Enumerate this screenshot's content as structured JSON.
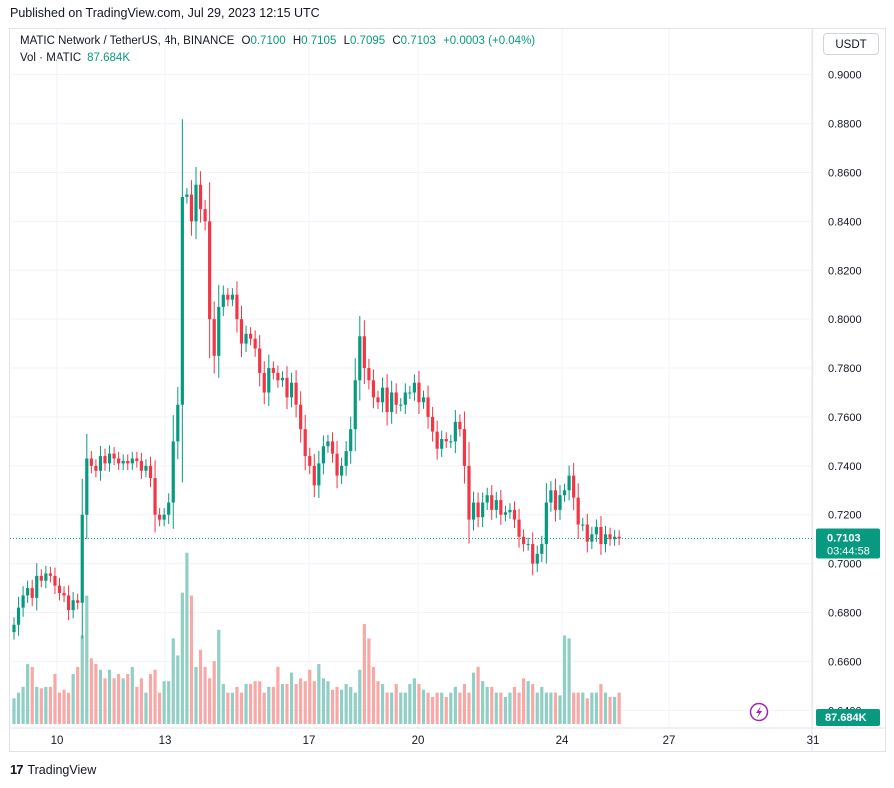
{
  "header": {
    "published": "Published on TradingView.com, Jul 29, 2023 12:15 UTC"
  },
  "legend": {
    "symbol": "MATIC Network / TetherUS, 4h, BINANCE",
    "o_label": "O",
    "o": "0.7100",
    "h_label": "H",
    "h": "0.7105",
    "l_label": "L",
    "l": "0.7095",
    "c_label": "C",
    "c": "0.7103",
    "change": "+0.0003 (+0.04%)",
    "vol_label": "Vol · MATIC",
    "vol": "87.684K"
  },
  "currency_button": "USDT",
  "price_tag": {
    "price": "0.7103",
    "countdown": "03:44:58"
  },
  "volume_tag": "87.684K",
  "footer": {
    "brand": "TradingView"
  },
  "colors": {
    "up": "#089981",
    "down": "#f23645",
    "up_vol": "#91cfc6",
    "down_vol": "#f7a9a7",
    "tag": "#089981",
    "last_line": "#089981"
  },
  "chart_data": {
    "type": "candlestick",
    "title": "MATIC Network / TetherUS, 4h, BINANCE",
    "y_ticks": [
      "0.9000",
      "0.8800",
      "0.8600",
      "0.8400",
      "0.8200",
      "0.8000",
      "0.7800",
      "0.7600",
      "0.7400",
      "0.7200",
      "0.7000",
      "0.6800",
      "0.6600",
      "0.6400"
    ],
    "ylim": [
      0.634,
      0.906
    ],
    "x_ticks": [
      "10",
      "13",
      "17",
      "20",
      "24",
      "27",
      "31"
    ],
    "last_price": 0.7103,
    "close": [
      0.675,
      0.682,
      0.687,
      0.69,
      0.686,
      0.695,
      0.693,
      0.696,
      0.695,
      0.691,
      0.688,
      0.687,
      0.681,
      0.685,
      0.684,
      0.72,
      0.743,
      0.74,
      0.738,
      0.744,
      0.741,
      0.745,
      0.743,
      0.741,
      0.742,
      0.741,
      0.743,
      0.742,
      0.738,
      0.74,
      0.735,
      0.72,
      0.718,
      0.72,
      0.725,
      0.75,
      0.765,
      0.85,
      0.851,
      0.84,
      0.855,
      0.845,
      0.84,
      0.8,
      0.785,
      0.805,
      0.81,
      0.808,
      0.81,
      0.8,
      0.79,
      0.794,
      0.792,
      0.788,
      0.778,
      0.77,
      0.78,
      0.778,
      0.775,
      0.776,
      0.768,
      0.774,
      0.765,
      0.755,
      0.744,
      0.74,
      0.732,
      0.741,
      0.748,
      0.75,
      0.745,
      0.736,
      0.74,
      0.746,
      0.755,
      0.775,
      0.793,
      0.78,
      0.775,
      0.768,
      0.766,
      0.772,
      0.762,
      0.77,
      0.765,
      0.765,
      0.77,
      0.77,
      0.774,
      0.766,
      0.768,
      0.76,
      0.754,
      0.747,
      0.751,
      0.75,
      0.75,
      0.758,
      0.755,
      0.74,
      0.718,
      0.725,
      0.719,
      0.725,
      0.728,
      0.722,
      0.726,
      0.72,
      0.721,
      0.722,
      0.718,
      0.711,
      0.708,
      0.708,
      0.7,
      0.704,
      0.708,
      0.725,
      0.73,
      0.722,
      0.728,
      0.73,
      0.736,
      0.727,
      0.716,
      0.716,
      0.709,
      0.712,
      0.715,
      0.708,
      0.712,
      0.71,
      0.711,
      0.7103
    ],
    "volume_thousands": [
      90,
      110,
      130,
      210,
      200,
      130,
      125,
      130,
      130,
      175,
      110,
      120,
      110,
      175,
      200,
      310,
      450,
      230,
      210,
      190,
      160,
      190,
      160,
      175,
      160,
      175,
      200,
      130,
      160,
      110,
      175,
      190,
      110,
      150,
      150,
      300,
      240,
      460,
      600,
      450,
      200,
      260,
      200,
      160,
      220,
      330,
      140,
      110,
      110,
      130,
      110,
      140,
      140,
      150,
      150,
      110,
      130,
      130,
      200,
      140,
      140,
      180,
      140,
      160,
      150,
      190,
      150,
      210,
      160,
      150,
      120,
      130,
      120,
      140,
      130,
      110,
      190,
      350,
      300,
      200,
      150,
      140,
      110,
      110,
      140,
      110,
      110,
      140,
      160,
      140,
      120,
      110,
      95,
      110,
      110,
      95,
      110,
      130,
      110,
      140,
      110,
      180,
      200,
      150,
      130,
      130,
      110,
      110,
      95,
      110,
      130,
      110,
      160,
      150,
      140,
      110,
      130,
      110,
      110,
      110,
      100,
      310,
      300,
      110,
      110,
      110,
      90,
      110,
      110,
      140,
      110,
      95,
      95,
      110,
      90,
      87.684
    ]
  }
}
